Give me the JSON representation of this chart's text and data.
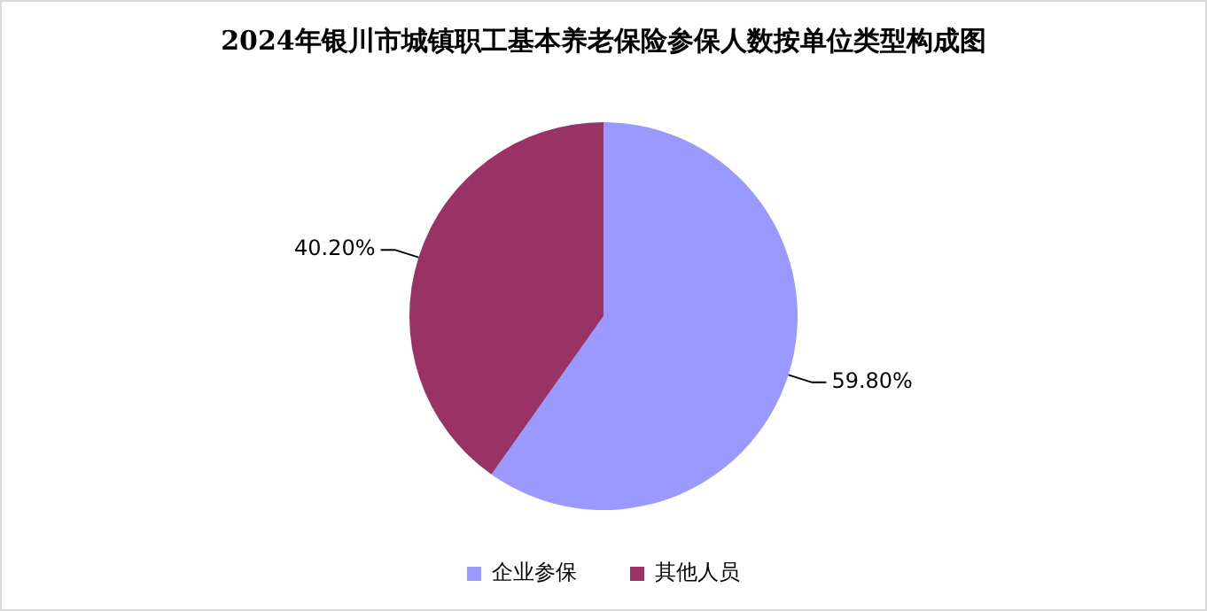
{
  "chart_data": {
    "type": "pie",
    "title": "2024年银川市城镇职工基本养老保险参保人数按单位类型构成图",
    "categories": [
      "企业参保",
      "其他人员"
    ],
    "values": [
      59.8,
      40.2
    ],
    "colors": [
      "#9999ff",
      "#993366"
    ],
    "value_labels": [
      "59.80%",
      "40.20%"
    ],
    "legend": "bottom"
  }
}
